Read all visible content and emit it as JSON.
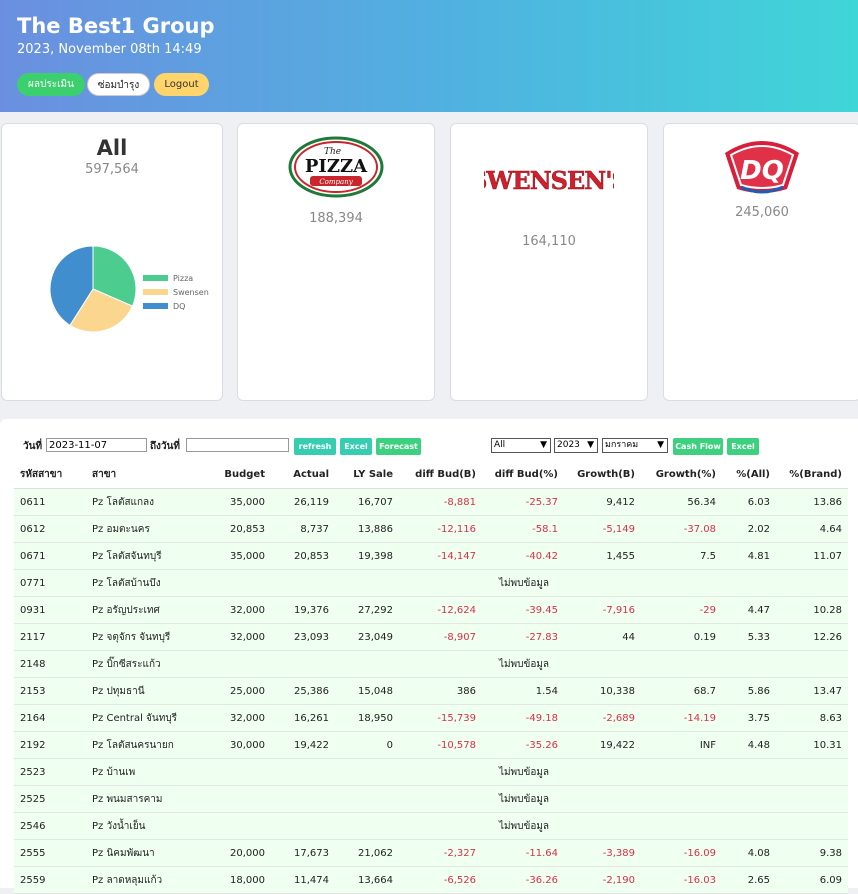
{
  "header": {
    "title": "The Best1 Group",
    "date": "2023, November 08th 14:49",
    "buttons": [
      "ผลประเมิน",
      "ซ่อมบำรุง",
      "Logout"
    ]
  },
  "cards": {
    "all": {
      "title": "All",
      "value": "597,564"
    },
    "pizza": {
      "logo": "The PIZZA Company",
      "value": "188,394"
    },
    "swensens": {
      "logo": "SWENSEN'S",
      "value": "164,110"
    },
    "dq": {
      "logo": "DQ",
      "value": "245,060"
    }
  },
  "chart_data": {
    "type": "pie",
    "labels": [
      "Pizza",
      "Swensen",
      "DQ"
    ],
    "values": [
      188394,
      164110,
      245060
    ],
    "colors": [
      "#4ccc8f",
      "#fbd68e",
      "#418ece"
    ]
  },
  "toolbar": {
    "from_label": "วันที่",
    "from_value": "2023-11-07",
    "to_label": "ถึงวันที่",
    "to_value": "",
    "refresh": "refresh",
    "excel": "Excel",
    "forecast": "Forecast",
    "filter_all": "All",
    "year": "2023",
    "month": "มกราคม",
    "cashflow": "Cash Flow",
    "excel2": "Excel"
  },
  "table": {
    "headers": [
      "รหัสสาขา",
      "สาขา",
      "Budget",
      "Actual",
      "LY Sale",
      "diff Bud(B)",
      "diff Bud(%)",
      "Growth(B)",
      "Growth(%)",
      "%(All)",
      "%(Brand)"
    ],
    "no_data": "ไม่พบข้อมูล",
    "rows": [
      [
        "0611",
        "Pz โลตัสแกลง",
        "35,000",
        "26,119",
        "16,707",
        "-8,881",
        "-25.37",
        "9,412",
        "56.34",
        "6.03",
        "13.86"
      ],
      [
        "0612",
        "Pz อมตะนคร",
        "20,853",
        "8,737",
        "13,886",
        "-12,116",
        "-58.1",
        "-5,149",
        "-37.08",
        "2.02",
        "4.64"
      ],
      [
        "0671",
        "Pz โลตัสจันทบุรี",
        "35,000",
        "20,853",
        "19,398",
        "-14,147",
        "-40.42",
        "1,455",
        "7.5",
        "4.81",
        "11.07"
      ],
      [
        "0771",
        "Pz โลตัสบ้านบึง"
      ],
      [
        "0931",
        "Pz อรัญประเทศ",
        "32,000",
        "19,376",
        "27,292",
        "-12,624",
        "-39.45",
        "-7,916",
        "-29",
        "4.47",
        "10.28"
      ],
      [
        "2117",
        "Pz จตุจักร จันทบุรี",
        "32,000",
        "23,093",
        "23,049",
        "-8,907",
        "-27.83",
        "44",
        "0.19",
        "5.33",
        "12.26"
      ],
      [
        "2148",
        "Pz บิ๊กซีสระแก้ว"
      ],
      [
        "2153",
        "Pz ปทุมธานี",
        "25,000",
        "25,386",
        "15,048",
        "386",
        "1.54",
        "10,338",
        "68.7",
        "5.86",
        "13.47"
      ],
      [
        "2164",
        "Pz Central จันทบุรี",
        "32,000",
        "16,261",
        "18,950",
        "-15,739",
        "-49.18",
        "-2,689",
        "-14.19",
        "3.75",
        "8.63"
      ],
      [
        "2192",
        "Pz โลตัสนครนายก",
        "30,000",
        "19,422",
        "0",
        "-10,578",
        "-35.26",
        "19,422",
        "INF",
        "4.48",
        "10.31"
      ],
      [
        "2523",
        "Pz บ้านเพ"
      ],
      [
        "2525",
        "Pz พนมสารคาม"
      ],
      [
        "2546",
        "Pz วังน้ำเย็น"
      ],
      [
        "2555",
        "Pz นิคมพัฒนา",
        "20,000",
        "17,673",
        "21,062",
        "-2,327",
        "-11.64",
        "-3,389",
        "-16.09",
        "4.08",
        "9.38"
      ],
      [
        "2559",
        "Pz ลาดหลุมแก้ว",
        "18,000",
        "11,474",
        "13,664",
        "-6,526",
        "-36.26",
        "-2,190",
        "-16.03",
        "2.65",
        "6.09"
      ]
    ]
  }
}
